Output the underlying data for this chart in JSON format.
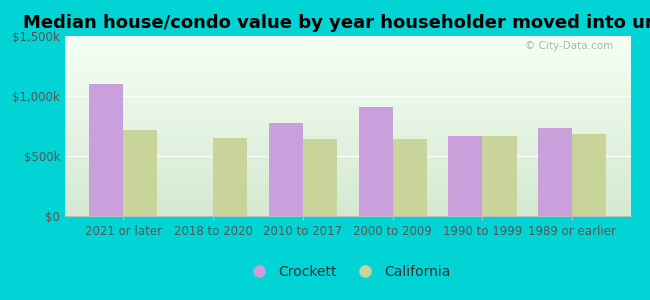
{
  "title": "Median house/condo value by year householder moved into unit",
  "categories": [
    "2021 or later",
    "2018 to 2020",
    "2010 to 2017",
    "2000 to 2009",
    "1990 to 1999",
    "1989 or earlier"
  ],
  "crockett_values": [
    1100000,
    0,
    775000,
    910000,
    665000,
    735000
  ],
  "california_values": [
    715000,
    650000,
    638000,
    645000,
    668000,
    685000
  ],
  "crockett_color": "#c9a0dc",
  "california_color": "#c8d49a",
  "background_outer": "#00d4d4",
  "background_inner_top": "#f5fff5",
  "background_inner_bottom": "#d4e8d0",
  "ylim": [
    0,
    1500000
  ],
  "yticks": [
    0,
    500000,
    1000000,
    1500000
  ],
  "ytick_labels": [
    "$0",
    "$500k",
    "$1,000k",
    "$1,500k"
  ],
  "bar_width": 0.38,
  "legend_labels": [
    "Crockett",
    "California"
  ],
  "watermark": "© City-Data.com",
  "title_fontsize": 13,
  "tick_fontsize": 8.5,
  "legend_fontsize": 10
}
